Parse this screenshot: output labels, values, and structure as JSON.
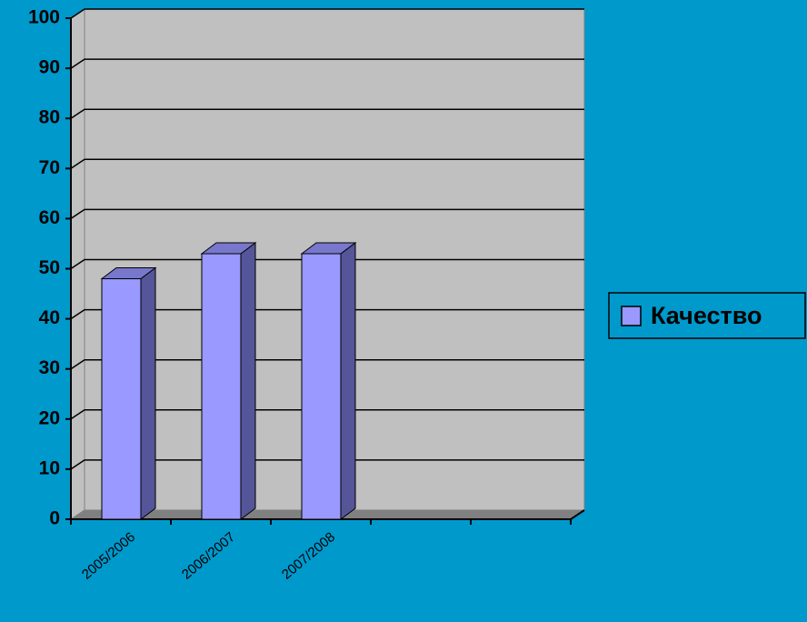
{
  "chart_data": {
    "type": "bar3d",
    "categories": [
      "2005/2006",
      "2006/2007",
      "2007/2008",
      null,
      null
    ],
    "series": [
      {
        "name": "Качество",
        "color": "#9999ff",
        "values": [
          48,
          53,
          53,
          null,
          null
        ]
      }
    ],
    "ylim": [
      0,
      100
    ],
    "yticks": [
      0,
      10,
      20,
      30,
      40,
      50,
      60,
      70,
      80,
      90,
      100
    ],
    "grid": true,
    "legend": "right"
  }
}
